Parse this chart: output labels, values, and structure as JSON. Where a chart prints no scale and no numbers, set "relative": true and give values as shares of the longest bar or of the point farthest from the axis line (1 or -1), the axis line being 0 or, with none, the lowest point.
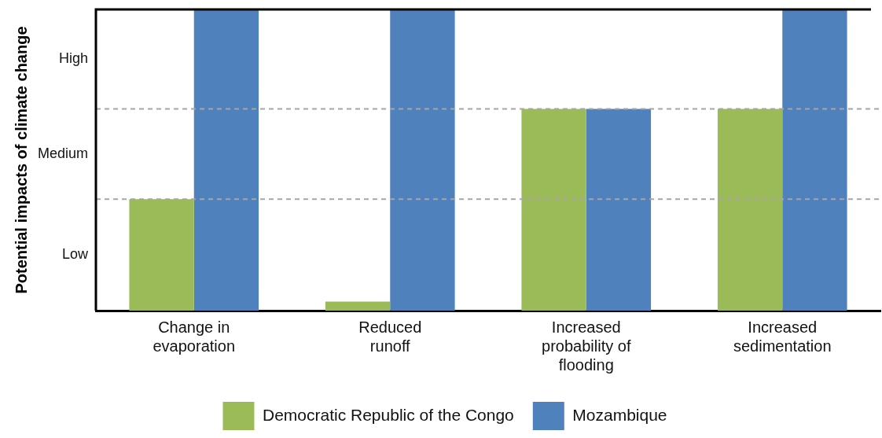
{
  "chart_data": {
    "type": "bar",
    "ylabel": "Potential impacts of climate change",
    "relative": true,
    "categories": [
      "Change in\nevaporation",
      "Reduced\nrunoff",
      "Increased\nprobability of\nflooding",
      "Increased\nsedimentation"
    ],
    "series": [
      {
        "name": "Democratic Republic of the Congo",
        "color": "#9bbb59",
        "values": [
          0.37,
          0.03,
          0.67,
          0.67
        ]
      },
      {
        "name": "Mozambique",
        "color": "#4f81bd",
        "values": [
          1,
          1,
          0.67,
          1
        ]
      }
    ],
    "annotations": [
      "Low",
      "Medium",
      "High"
    ],
    "ref_lines": [
      {
        "axis": "y",
        "value": 0.37,
        "color": "#a6a6a6",
        "line_style": "dashed"
      },
      {
        "axis": "y",
        "value": 0.67,
        "color": "#a6a6a6",
        "line_style": "dashed"
      }
    ],
    "grid": false,
    "legend": "bottom"
  }
}
